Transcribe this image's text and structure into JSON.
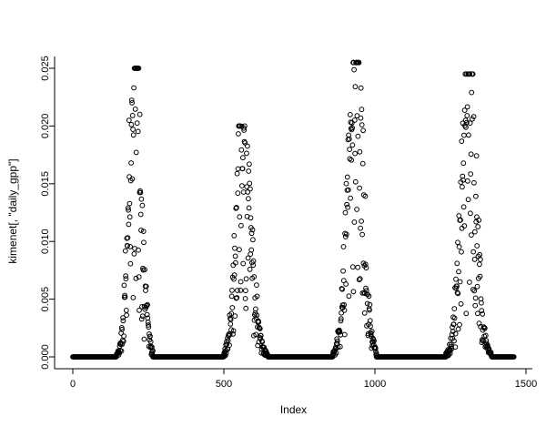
{
  "figure": {
    "background": "#ffffff",
    "point_color": "#000000",
    "axis_color": "#000000"
  },
  "chart_data": {
    "type": "scatter",
    "title": "",
    "xlabel": "Index",
    "ylabel": "kimenet[, \"daily_gpp\"]",
    "marker": "open-circle",
    "xlim": [
      0,
      1500
    ],
    "ylim": [
      0,
      0.025
    ],
    "x_ticks": [
      0,
      500,
      1000,
      1500
    ],
    "y_ticks": [
      0.0,
      0.005,
      0.01,
      0.015,
      0.02,
      0.025
    ],
    "grid": false,
    "legend": "none",
    "description": "Daily GPP time series over ~1460 daily indices: four seasonal peaks separated by long runs of exact zeros",
    "baseline_zero_segments": [
      [
        0,
        145
      ],
      [
        265,
        500
      ],
      [
        650,
        860
      ],
      [
        1005,
        1235
      ],
      [
        1390,
        1460
      ]
    ],
    "seasons": [
      {
        "start": 145,
        "peak_x": 205,
        "end": 265,
        "peak_y": 0.025,
        "rise_w": 28,
        "fall_w": 30
      },
      {
        "start": 500,
        "peak_x": 560,
        "end": 650,
        "peak_y": 0.02,
        "rise_w": 30,
        "fall_w": 40
      },
      {
        "start": 860,
        "peak_x": 935,
        "end": 1005,
        "peak_y": 0.0255,
        "rise_w": 35,
        "fall_w": 35
      },
      {
        "start": 1235,
        "peak_x": 1310,
        "end": 1390,
        "peak_y": 0.0245,
        "rise_w": 35,
        "fall_w": 35
      }
    ],
    "noise": {
      "seed": 42,
      "factor_min": 0.38,
      "factor_span": 0.67,
      "low_outlier_prob": 0.18,
      "low_outlier_factor": 0.35
    }
  }
}
